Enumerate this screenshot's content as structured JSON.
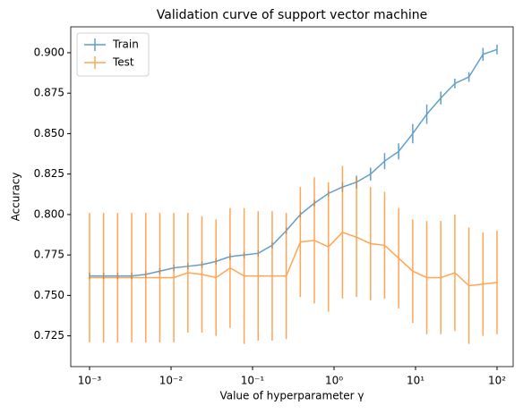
{
  "chart_data": {
    "type": "errorbar_line",
    "title": "Validation curve of support vector machine",
    "xlabel": "Value of hyperparameter γ",
    "ylabel": "Accuracy",
    "xscale": "log",
    "x": [
      0.001,
      0.001487,
      0.002212,
      0.00329,
      0.004894,
      0.007279,
      0.010826,
      0.016103,
      0.02395,
      0.035622,
      0.052983,
      0.078805,
      0.11721,
      0.174333,
      0.259294,
      0.385662,
      0.573615,
      0.853168,
      1.268961,
      1.887392,
      2.807216,
      4.175319,
      6.210169,
      9.236709,
      13.738238,
      20.433597,
      30.391954,
      45.203537,
      67.233575,
      100
    ],
    "series": [
      {
        "name": "Train",
        "color": "#1f77b4",
        "values": [
          0.762,
          0.762,
          0.762,
          0.762,
          0.763,
          0.765,
          0.767,
          0.768,
          0.769,
          0.771,
          0.774,
          0.775,
          0.776,
          0.781,
          0.79,
          0.8,
          0.807,
          0.813,
          0.817,
          0.82,
          0.825,
          0.833,
          0.839,
          0.85,
          0.862,
          0.872,
          0.881,
          0.885,
          0.899,
          0.902
        ],
        "errors": [
          0.002,
          0.002,
          0.002,
          0.002,
          0.002,
          0.002,
          0.002,
          0.002,
          0.002,
          0.002,
          0.002,
          0.002,
          0.002,
          0.002,
          0.002,
          0.002,
          0.002,
          0.002,
          0.003,
          0.004,
          0.004,
          0.005,
          0.005,
          0.006,
          0.006,
          0.004,
          0.003,
          0.003,
          0.004,
          0.003
        ]
      },
      {
        "name": "Test",
        "color": "#ff7f0e",
        "values": [
          0.761,
          0.761,
          0.761,
          0.761,
          0.761,
          0.761,
          0.761,
          0.764,
          0.763,
          0.761,
          0.767,
          0.762,
          0.762,
          0.762,
          0.762,
          0.783,
          0.784,
          0.78,
          0.789,
          0.786,
          0.782,
          0.781,
          0.773,
          0.765,
          0.761,
          0.761,
          0.764,
          0.756,
          0.757,
          0.758
        ],
        "errors": [
          0.04,
          0.04,
          0.04,
          0.04,
          0.04,
          0.04,
          0.04,
          0.037,
          0.036,
          0.036,
          0.037,
          0.042,
          0.04,
          0.04,
          0.039,
          0.034,
          0.039,
          0.04,
          0.041,
          0.037,
          0.035,
          0.033,
          0.031,
          0.032,
          0.035,
          0.035,
          0.036,
          0.036,
          0.032,
          0.032
        ]
      }
    ],
    "xlim": [
      0.000588,
      157.7
    ],
    "ylim": [
      0.706,
      0.916
    ],
    "xticks": [
      {
        "value": 0.001,
        "label": "10⁻³"
      },
      {
        "value": 0.01,
        "label": "10⁻²"
      },
      {
        "value": 0.1,
        "label": "10⁻¹"
      },
      {
        "value": 1,
        "label": "10⁰"
      },
      {
        "value": 10,
        "label": "10¹"
      },
      {
        "value": 100,
        "label": "10²"
      }
    ],
    "yticks": [
      {
        "value": 0.725,
        "label": "0.725"
      },
      {
        "value": 0.75,
        "label": "0.750"
      },
      {
        "value": 0.775,
        "label": "0.775"
      },
      {
        "value": 0.8,
        "label": "0.800"
      },
      {
        "value": 0.825,
        "label": "0.825"
      },
      {
        "value": 0.85,
        "label": "0.850"
      },
      {
        "value": 0.875,
        "label": "0.875"
      },
      {
        "value": 0.9,
        "label": "0.900"
      }
    ],
    "legend": "upper left"
  }
}
